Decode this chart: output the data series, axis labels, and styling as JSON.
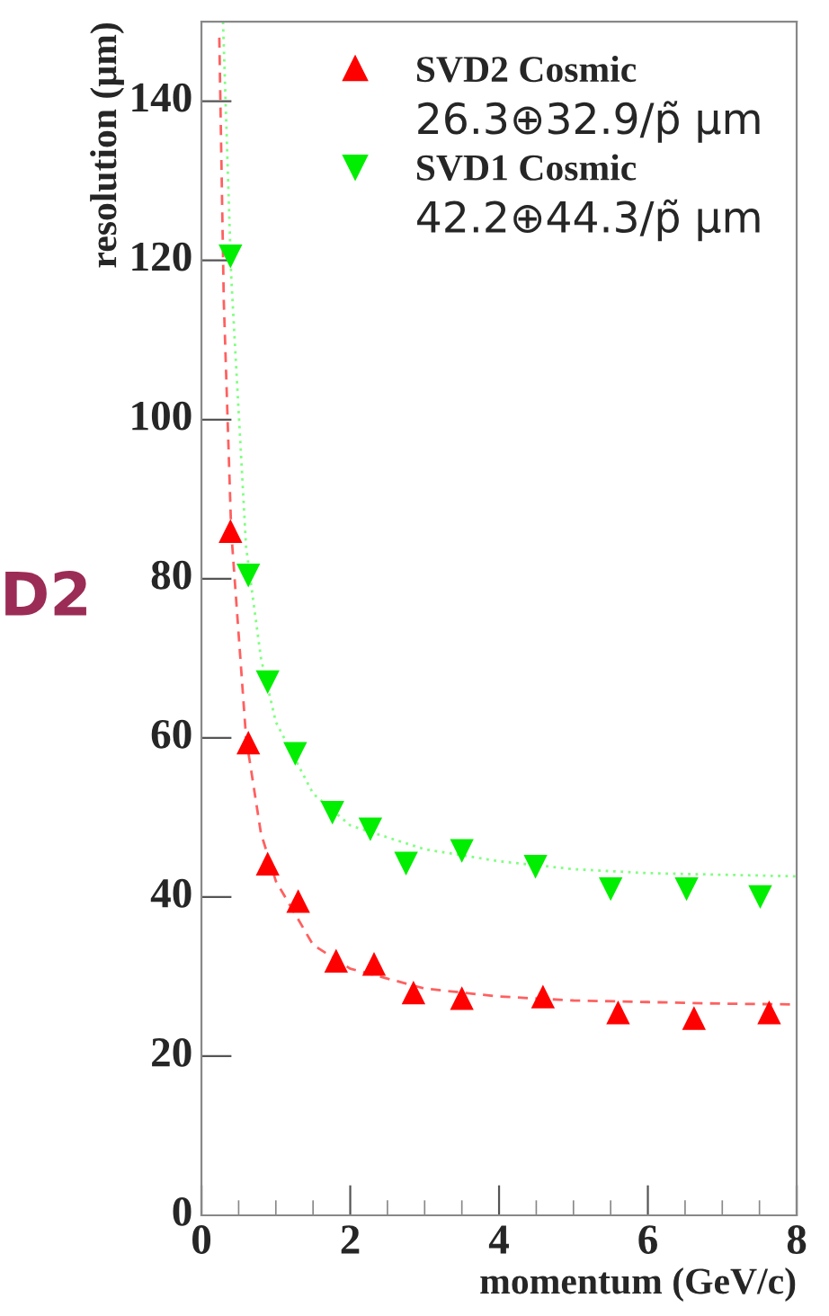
{
  "chart_data": {
    "type": "scatter",
    "xlabel": "momentum (GeV/c)",
    "ylabel": "resolution (µm)",
    "xlim": [
      0,
      8
    ],
    "xticks": [
      0,
      2,
      4,
      6,
      8
    ],
    "ylim": [
      0,
      150
    ],
    "yticks": [
      0,
      20,
      40,
      60,
      80,
      100,
      120,
      140
    ],
    "grid": false,
    "legend": "top right",
    "annotations": [
      "26.3⊕32.9/p̃ µm",
      "42.2⊕44.3/p̃ µm",
      "D2"
    ],
    "series": [
      {
        "name": "SVD2 Cosmic",
        "marker": "triangle",
        "color": "#ff0000",
        "x": [
          0.39,
          0.63,
          0.89,
          1.3,
          1.81,
          2.32,
          2.85,
          3.5,
          4.59,
          5.6,
          6.62,
          7.63
        ],
        "values": [
          86,
          59.4,
          44.2,
          39.5,
          32,
          31.6,
          28,
          27.3,
          27.5,
          25.5,
          24.8,
          25.5
        ]
      },
      {
        "name": "SVD1 Cosmic",
        "marker": "triangle_down",
        "color": "#00ee00",
        "x": [
          0.39,
          0.63,
          0.89,
          1.26,
          1.76,
          2.27,
          2.75,
          3.5,
          4.49,
          5.5,
          6.52,
          7.51
        ],
        "values": [
          120.5,
          80.4,
          67,
          58,
          50.6,
          48.5,
          44.2,
          45.8,
          43.8,
          41,
          41,
          40
        ]
      },
      {
        "type": "line",
        "marker": "none",
        "line_style": "dashed",
        "color": "#ff6060",
        "x": [
          0.24,
          0.3,
          0.4,
          0.6,
          0.8,
          1.0,
          1.5,
          2,
          3,
          4,
          5,
          6,
          7,
          8
        ],
        "values": [
          148,
          115,
          86,
          60,
          48,
          42,
          34,
          31,
          28.5,
          27.5,
          27,
          26.8,
          26.6,
          26.5
        ]
      },
      {
        "type": "line",
        "marker": "none",
        "line_style": "dotted",
        "color": "#80ff80",
        "x": [
          0.29,
          0.4,
          0.6,
          0.8,
          1.0,
          1.5,
          2,
          3,
          4,
          5,
          6,
          7,
          8
        ],
        "values": [
          150,
          118,
          84,
          70,
          62,
          53,
          49,
          46,
          44.5,
          43.5,
          43,
          42.8,
          42.6
        ]
      }
    ]
  }
}
